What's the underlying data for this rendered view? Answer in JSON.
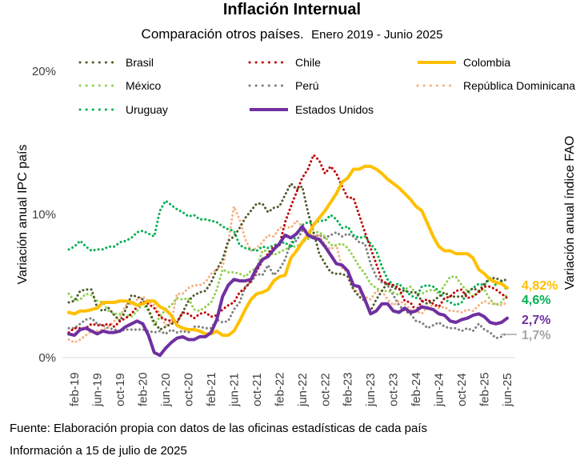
{
  "chart_data": {
    "type": "line",
    "title": "Inflación Internual",
    "subtitle_main": "Comparación otros países.",
    "subtitle_rest": "Enero 2019 - Junio 2025",
    "ylabel": "Variación anual IPC país",
    "y2label": "Variación anual índice FAO",
    "ylim": [
      0,
      20
    ],
    "yticks": [
      "0%",
      "10%",
      "20%"
    ],
    "x_start": "2019-01",
    "x_end": "2025-06",
    "xticks": [
      "feb-19",
      "jun-19",
      "oct-19",
      "feb-20",
      "jun-20",
      "oct-20",
      "feb-21",
      "jun-21",
      "oct-21",
      "feb-22",
      "jun-22",
      "oct-22",
      "feb-23",
      "jun-23",
      "oct-23",
      "feb-24",
      "jun-24",
      "oct-24",
      "feb-25",
      "jun-25"
    ],
    "series": [
      {
        "name": "Brasil",
        "color": "#4f5b2a",
        "style": "dotted",
        "values": [
          3.8,
          3.9,
          4.6,
          4.7,
          4.7,
          3.4,
          3.2,
          3.4,
          2.9,
          2.5,
          3.3,
          4.3,
          4.2,
          4.0,
          3.3,
          2.4,
          1.9,
          2.1,
          2.3,
          2.4,
          3.1,
          3.9,
          4.3,
          4.5,
          4.6,
          5.2,
          6.1,
          6.8,
          8.1,
          8.4,
          9.0,
          9.7,
          10.2,
          10.7,
          10.7,
          10.1,
          10.4,
          10.5,
          11.3,
          12.1,
          11.7,
          11.9,
          10.1,
          8.7,
          7.2,
          6.5,
          5.9,
          5.8,
          5.8,
          5.6,
          4.7,
          4.2,
          3.9,
          3.2,
          4.0,
          4.6,
          5.2,
          4.8,
          4.7,
          4.6,
          4.5,
          4.5,
          3.9,
          3.7,
          3.9,
          4.2,
          4.5,
          4.2,
          4.2,
          4.2,
          4.5,
          4.8,
          4.6,
          5.1,
          5.5,
          5.5,
          5.3,
          5.4
        ]
      },
      {
        "name": "Chile",
        "color": "#c00000",
        "style": "dotted",
        "values": [
          1.7,
          2.0,
          2.0,
          2.0,
          2.3,
          2.2,
          2.2,
          2.3,
          2.1,
          2.5,
          2.7,
          3.0,
          3.5,
          3.9,
          3.7,
          3.4,
          2.8,
          2.6,
          2.5,
          2.4,
          3.1,
          3.0,
          2.7,
          3.0,
          3.1,
          2.8,
          2.9,
          3.3,
          3.6,
          3.8,
          4.5,
          4.8,
          5.3,
          6.0,
          6.7,
          7.2,
          7.7,
          7.8,
          9.4,
          10.5,
          11.5,
          12.5,
          13.1,
          14.1,
          13.7,
          12.8,
          13.3,
          12.8,
          11.9,
          11.1,
          11.1,
          9.9,
          8.7,
          7.6,
          6.5,
          5.3,
          5.1,
          5.0,
          4.8,
          3.9,
          3.8,
          3.2,
          3.9,
          4.0,
          3.7,
          3.5,
          4.1,
          4.2,
          4.6,
          4.7,
          4.1,
          4.2,
          4.5,
          4.9,
          4.9,
          4.7,
          4.4,
          4.1
        ]
      },
      {
        "name": "Colombia",
        "color": "#ffc000",
        "style": "solid",
        "values": [
          3.1,
          3.0,
          3.2,
          3.2,
          3.3,
          3.4,
          3.8,
          3.8,
          3.8,
          3.9,
          3.9,
          3.8,
          3.6,
          3.7,
          3.9,
          3.9,
          3.5,
          3.3,
          2.9,
          2.2,
          2.0,
          1.9,
          1.9,
          1.8,
          1.6,
          1.6,
          1.8,
          1.5,
          1.5,
          1.8,
          2.5,
          3.3,
          4.0,
          4.4,
          4.5,
          4.7,
          5.3,
          5.6,
          5.7,
          6.9,
          7.4,
          8.0,
          8.5,
          9.2,
          9.7,
          10.2,
          10.8,
          11.4,
          12.2,
          12.5,
          13.1,
          13.1,
          13.3,
          13.3,
          13.1,
          12.8,
          12.4,
          12.1,
          11.8,
          11.4,
          11.0,
          10.5,
          10.2,
          9.3,
          8.4,
          7.7,
          7.4,
          7.4,
          7.2,
          7.2,
          7.2,
          6.9,
          6.1,
          5.8,
          5.4,
          5.2,
          5.1,
          4.8
        ]
      },
      {
        "name": "México",
        "color": "#92d050",
        "style": "dotted",
        "values": [
          4.4,
          3.9,
          4.0,
          4.4,
          4.3,
          3.9,
          3.8,
          3.2,
          3.0,
          3.0,
          2.9,
          2.8,
          3.2,
          3.7,
          3.2,
          2.2,
          2.8,
          3.3,
          3.6,
          4.1,
          4.0,
          4.1,
          3.3,
          3.2,
          3.5,
          3.8,
          4.7,
          6.1,
          5.9,
          5.9,
          5.8,
          5.6,
          6.0,
          6.2,
          7.4,
          7.4,
          7.1,
          7.3,
          7.5,
          7.7,
          7.7,
          8.0,
          8.2,
          8.7,
          8.7,
          8.4,
          7.8,
          7.8,
          7.9,
          7.6,
          7.0,
          6.3,
          5.8,
          5.1,
          4.8,
          4.6,
          4.6,
          4.5,
          4.3,
          4.7,
          4.9,
          4.4,
          4.4,
          4.6,
          4.7,
          4.4,
          5.0,
          5.6,
          5.6,
          5.0,
          4.6,
          4.2,
          4.6,
          4.7,
          4.0,
          3.6,
          3.8,
          4.4
        ]
      },
      {
        "name": "Perú",
        "color": "#7f7f7f",
        "style": "dotted",
        "values": [
          2.0,
          2.0,
          2.3,
          2.6,
          2.7,
          2.3,
          2.2,
          2.0,
          1.9,
          1.8,
          1.9,
          1.9,
          1.9,
          1.9,
          1.8,
          1.7,
          1.8,
          1.6,
          1.9,
          1.7,
          1.8,
          1.7,
          2.1,
          2.1,
          2.0,
          2.0,
          2.6,
          2.4,
          2.5,
          3.3,
          3.8,
          4.9,
          5.2,
          5.8,
          5.7,
          6.4,
          5.7,
          6.1,
          6.8,
          8.0,
          8.1,
          8.8,
          8.7,
          8.4,
          8.5,
          8.3,
          8.5,
          8.7,
          8.4,
          8.6,
          8.4,
          8.0,
          7.9,
          6.5,
          5.6,
          5.2,
          5.0,
          4.3,
          3.6,
          3.2,
          3.0,
          2.5,
          2.4,
          2.0,
          2.2,
          2.4,
          2.1,
          2.0,
          2.0,
          1.8,
          2.0,
          1.8,
          2.3,
          1.9,
          1.7,
          1.3,
          1.4,
          1.7
        ]
      },
      {
        "name": "República Dominicana",
        "color": "#f4b183",
        "style": "dotted",
        "values": [
          1.2,
          1.0,
          1.2,
          1.5,
          1.8,
          1.8,
          1.9,
          2.1,
          2.5,
          2.8,
          3.6,
          3.7,
          4.0,
          4.2,
          3.9,
          3.6,
          3.0,
          2.2,
          2.4,
          4.4,
          4.4,
          4.8,
          5.0,
          5.0,
          5.2,
          5.8,
          6.1,
          6.3,
          8.0,
          10.5,
          9.6,
          8.2,
          7.4,
          7.6,
          8.0,
          8.5,
          8.4,
          9.0,
          9.1,
          9.0,
          9.5,
          9.1,
          8.7,
          8.4,
          8.5,
          7.8,
          7.5,
          7.8,
          6.2,
          5.9,
          4.7,
          4.5,
          4.2,
          4.0,
          4.6,
          4.6,
          4.0,
          3.6,
          3.9,
          3.7,
          3.3,
          3.2,
          3.0,
          3.5,
          3.6,
          3.4,
          3.5,
          3.2,
          3.2,
          3.1,
          3.3,
          3.2,
          3.6,
          3.9,
          3.7,
          3.7,
          3.6,
          3.8
        ]
      },
      {
        "name": "Uruguay",
        "color": "#00b050",
        "style": "dotted",
        "values": [
          7.5,
          7.7,
          8.1,
          7.7,
          7.4,
          7.5,
          7.5,
          7.7,
          7.7,
          8.0,
          8.1,
          8.3,
          8.7,
          8.8,
          8.6,
          8.4,
          10.2,
          10.9,
          10.6,
          10.3,
          10.1,
          9.8,
          9.9,
          9.6,
          9.6,
          9.5,
          9.4,
          9.1,
          8.9,
          8.8,
          7.8,
          7.6,
          7.5,
          7.4,
          7.7,
          7.6,
          7.8,
          7.9,
          8.0,
          7.6,
          8.6,
          9.2,
          9.4,
          9.3,
          9.5,
          9.5,
          9.9,
          9.6,
          9.0,
          9.1,
          8.5,
          8.3,
          8.4,
          7.9,
          7.4,
          6.3,
          5.4,
          5.0,
          5.1,
          4.7,
          4.3,
          4.1,
          4.9,
          5.0,
          4.9,
          4.6,
          4.0,
          3.8,
          3.6,
          3.8,
          4.5,
          4.8,
          5.1,
          5.0,
          5.5,
          5.0,
          5.3,
          4.6
        ]
      },
      {
        "name": "Estados Unidos",
        "color": "#7030a0",
        "style": "solid",
        "values": null
      }
    ],
    "us_values": [
      1.6,
      1.5,
      1.9,
      2.0,
      1.8,
      1.6,
      1.8,
      1.7,
      1.7,
      1.8,
      2.1,
      2.3,
      2.5,
      2.3,
      1.5,
      0.3,
      0.1,
      0.6,
      1.0,
      1.3,
      1.4,
      1.2,
      1.2,
      1.4,
      1.4,
      1.7,
      2.6,
      4.2,
      5.0,
      5.4,
      5.3,
      5.3,
      5.4,
      6.2,
      6.8,
      7.0,
      7.5,
      7.9,
      8.5,
      8.3,
      8.6,
      9.1,
      8.5,
      8.3,
      8.2,
      7.7,
      7.1,
      6.5,
      6.4,
      6.0,
      5.0,
      4.9,
      4.0,
      3.0,
      3.2,
      3.7,
      3.7,
      3.2,
      3.1,
      3.4,
      3.1,
      3.2,
      3.5,
      3.4,
      3.3,
      3.0,
      2.9,
      2.5,
      2.4,
      2.6,
      2.7,
      2.9,
      3.0,
      2.8,
      2.4,
      2.3,
      2.4,
      2.7
    ],
    "end_labels": [
      {
        "series": "Colombia",
        "text": "4,82%",
        "color": "#ffc000"
      },
      {
        "series": "Uruguay",
        "text": "4,6%",
        "color": "#00b050"
      },
      {
        "series": "Estados Unidos",
        "text": "2,7%",
        "color": "#7030a0"
      },
      {
        "series": "Perú",
        "text": "1,7%",
        "color": "#a6a6a6"
      }
    ],
    "legend_placement": "top",
    "grid": false
  },
  "footer": {
    "source": "Fuente: Elaboración propia con datos de las oficinas estadísticas de cada país",
    "date": "Información a 15 de julio de 2025"
  }
}
